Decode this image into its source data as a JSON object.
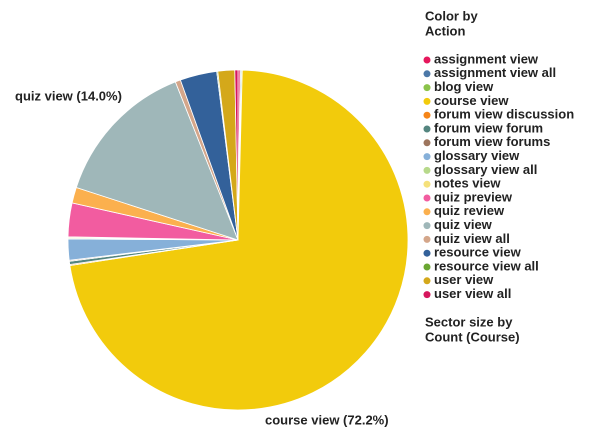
{
  "chart_data": {
    "type": "pie",
    "legend_title": [
      "Color by",
      "Action"
    ],
    "size_note": [
      "Sector size by",
      "Count (Course)"
    ],
    "categories": [
      "assignment view",
      "assignment view all",
      "blog view",
      "course view",
      "forum view discussion",
      "forum view forum",
      "forum view forums",
      "glossary view",
      "glossary view all",
      "notes view",
      "quiz preview",
      "quiz review",
      "quiz view",
      "quiz view all",
      "resource view",
      "resource view all",
      "user view",
      "user view all"
    ],
    "values": [
      0.2,
      0.1,
      0.1,
      72.2,
      0.1,
      0.3,
      0.1,
      2.0,
      0.1,
      0.1,
      3.2,
      1.5,
      14.0,
      0.5,
      3.5,
      0.1,
      1.6,
      0.3
    ],
    "value_labels": [
      null,
      null,
      null,
      "course view (72.2%)",
      null,
      null,
      null,
      null,
      null,
      null,
      null,
      null,
      "quiz view (14.0%)",
      null,
      null,
      null,
      null,
      null
    ],
    "colors": [
      "#e6175c",
      "#4c78a8",
      "#8bc34a",
      "#f2cb0c",
      "#f58518",
      "#54857f",
      "#9d755d",
      "#86b0d9",
      "#b7d98b",
      "#f5e17b",
      "#f25ca0",
      "#fbb04e",
      "#9fb7b9",
      "#d4a68a",
      "#33619a",
      "#6aa632",
      "#d4a81a",
      "#d6165d"
    ]
  }
}
